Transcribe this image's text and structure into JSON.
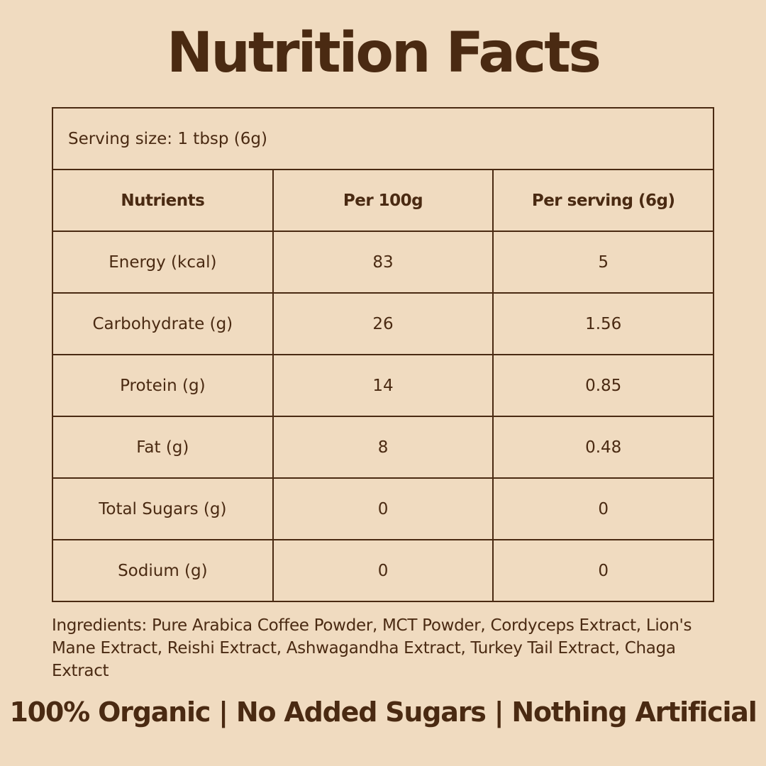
{
  "header": {
    "title": "Nutrition Facts"
  },
  "table": {
    "serving_size": "Serving size: 1 tbsp (6g)",
    "columns": [
      "Nutrients",
      "Per 100g",
      "Per serving (6g)"
    ],
    "rows": [
      [
        "Energy (kcal)",
        83,
        5
      ],
      [
        "Carbohydrate (g)",
        26,
        1.56
      ],
      [
        "Protein (g)",
        14,
        0.85
      ],
      [
        "Fat (g)",
        8,
        0.48
      ],
      [
        "Total Sugars (g)",
        0,
        0
      ],
      [
        "Sodium (g)",
        0,
        0
      ]
    ]
  },
  "ingredients": "Ingredients: Pure Arabica Coffee Powder, MCT Powder, Cordyceps Extract, Lion's Mane Extract, Reishi Extract, Ashwagandha Extract, Turkey Tail Extract, Chaga Extract",
  "footer": "100% Organic | No Added Sugars | Nothing Artificial"
}
